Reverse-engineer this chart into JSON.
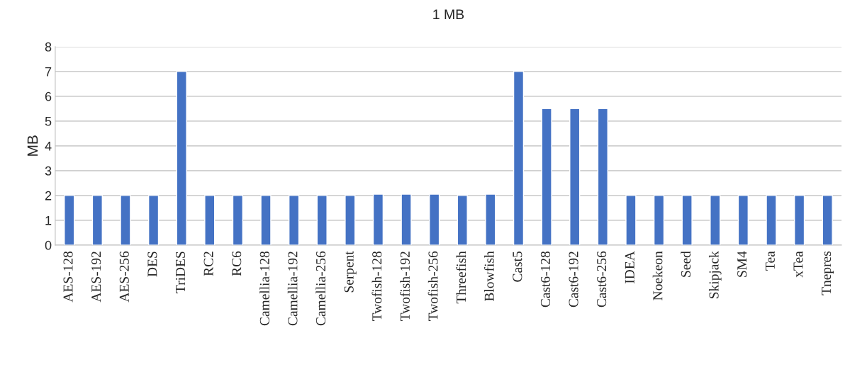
{
  "chart_data": {
    "type": "bar",
    "title": "1 MB",
    "ylabel": "MB",
    "categories": [
      "AES-128",
      "AES-192",
      "AES-256",
      "DES",
      "TriDES",
      "RC2",
      "RC6",
      "Camellia-128",
      "Camellia-192",
      "Camellia-256",
      "Serpent",
      "Twofish-128",
      "Twofish-192",
      "Twofish-256",
      "Threefish",
      "Blowfish",
      "Cast5",
      "Cast6-128",
      "Cast6-192",
      "Cast6-256",
      "IDEA",
      "Noekeon",
      "Seed",
      "Skipjack",
      "SM4",
      "Tea",
      "xTea",
      "Tnepres"
    ],
    "values": [
      2,
      2,
      2,
      2,
      7,
      2,
      2,
      2,
      2,
      2,
      2,
      2.05,
      2.05,
      2.05,
      2,
      2.05,
      7,
      5.5,
      5.5,
      5.5,
      2,
      2,
      2,
      2,
      2,
      2,
      2,
      2
    ],
    "color": "#4472c4",
    "ylim": [
      0,
      8
    ],
    "yticks": [
      0,
      1,
      2,
      3,
      4,
      5,
      6,
      7,
      8
    ],
    "grid": "y",
    "legend": false
  }
}
